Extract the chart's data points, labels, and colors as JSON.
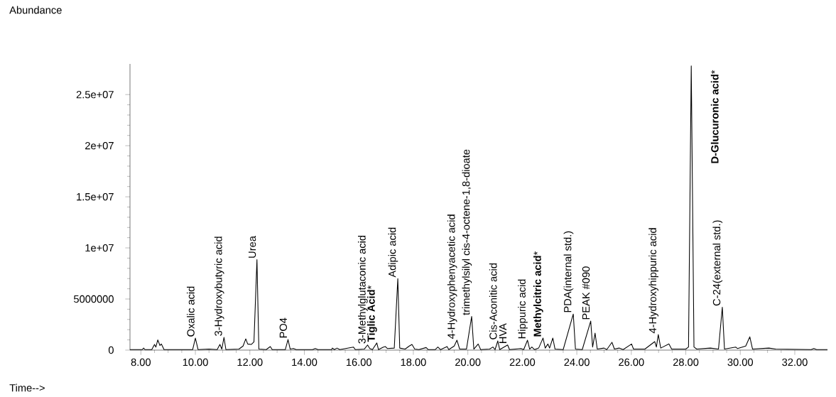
{
  "chart_data": {
    "type": "line",
    "ylabel": "Abundance",
    "xlabel": "Time-->",
    "xlim": [
      7.6,
      33.2
    ],
    "ylim": [
      0,
      28000000
    ],
    "xticks": [
      {
        "value": 8,
        "label": "8.00"
      },
      {
        "value": 10,
        "label": "10.00"
      },
      {
        "value": 12,
        "label": "12.00"
      },
      {
        "value": 14,
        "label": "14.00"
      },
      {
        "value": 16,
        "label": "16.00"
      },
      {
        "value": 18,
        "label": "18.00"
      },
      {
        "value": 20,
        "label": "20.00"
      },
      {
        "value": 22,
        "label": "22.00"
      },
      {
        "value": 24,
        "label": "24.00"
      },
      {
        "value": 26,
        "label": "26.00"
      },
      {
        "value": 28,
        "label": "28.00"
      },
      {
        "value": 30,
        "label": "30.00"
      },
      {
        "value": 32,
        "label": "32.00"
      }
    ],
    "yticks": [
      0,
      5000000,
      {
        "value": 10000000,
        "label": "1e+07"
      },
      {
        "value": 15000000,
        "label": "1.5e+07"
      },
      {
        "value": 20000000,
        "label": "2e+07"
      },
      {
        "value": 25000000,
        "label": "2.5e+07"
      }
    ],
    "series": [
      {
        "color": "#000000",
        "x": [
          7.6,
          8.05,
          8.1,
          8.15,
          8.4,
          8.5,
          8.55,
          8.62,
          8.7,
          8.75,
          8.85,
          9.5,
          9.9,
          10.0,
          10.1,
          10.5,
          10.8,
          10.9,
          10.97,
          11.05,
          11.12,
          11.6,
          11.75,
          11.85,
          11.92,
          12.05,
          12.15,
          12.26,
          12.33,
          12.6,
          12.75,
          12.82,
          13.3,
          13.4,
          13.48,
          13.6,
          13.7,
          14.3,
          14.4,
          14.5,
          15.0,
          15.03,
          15.1,
          15.2,
          15.3,
          15.8,
          15.87,
          16.2,
          16.32,
          16.4,
          16.5,
          16.66,
          16.72,
          16.9,
          16.97,
          17.05,
          17.3,
          17.43,
          17.5,
          17.7,
          17.85,
          17.95,
          18.05,
          18.2,
          18.47,
          18.55,
          18.8,
          18.9,
          19.0,
          19.24,
          19.3,
          19.5,
          19.6,
          19.7,
          19.95,
          20.14,
          20.22,
          20.38,
          20.47,
          20.8,
          20.92,
          21.0,
          21.1,
          21.17,
          21.46,
          21.53,
          21.95,
          22.05,
          22.19,
          22.27,
          22.35,
          22.45,
          22.6,
          22.76,
          22.84,
          22.94,
          23.0,
          23.12,
          23.2,
          23.5,
          23.87,
          23.95,
          24.2,
          24.51,
          24.58,
          24.67,
          24.75,
          25.0,
          25.1,
          25.29,
          25.38,
          25.55,
          25.7,
          26.01,
          26.08,
          26.5,
          26.86,
          26.92,
          26.99,
          27.08,
          27.38,
          27.48,
          28.0,
          28.1,
          28.2,
          28.3,
          28.4,
          28.9,
          29.2,
          29.34,
          29.42,
          29.83,
          29.9,
          30.2,
          30.35,
          30.45,
          31.05,
          31.3,
          32.6,
          32.7,
          32.8,
          33.2
        ],
        "values": [
          50000,
          50000,
          200000,
          50000,
          50000,
          550000,
          300000,
          1000000,
          450000,
          600000,
          50000,
          50000,
          50000,
          1180000,
          50000,
          100000,
          50000,
          550000,
          100000,
          1250000,
          50000,
          100000,
          400000,
          1100000,
          600000,
          550000,
          800000,
          8860000,
          100000,
          50000,
          350000,
          50000,
          50000,
          1040000,
          100000,
          150000,
          50000,
          50000,
          150000,
          50000,
          50000,
          200000,
          50000,
          200000,
          50000,
          300000,
          50000,
          100000,
          500000,
          150000,
          50000,
          700000,
          50000,
          300000,
          350000,
          150000,
          200000,
          7000000,
          200000,
          100000,
          400000,
          550000,
          100000,
          50000,
          250000,
          50000,
          50000,
          300000,
          50000,
          350000,
          50000,
          400000,
          970000,
          100000,
          100000,
          3300000,
          100000,
          600000,
          50000,
          100000,
          300000,
          50000,
          900000,
          50000,
          500000,
          50000,
          150000,
          50000,
          970000,
          100000,
          300000,
          50000,
          200000,
          1180000,
          200000,
          600000,
          200000,
          1180000,
          100000,
          50000,
          3530000,
          100000,
          50000,
          2840000,
          300000,
          1660000,
          100000,
          200000,
          50000,
          760000,
          100000,
          200000,
          50000,
          600000,
          100000,
          100000,
          830000,
          300000,
          1520000,
          200000,
          600000,
          100000,
          100000,
          300000,
          27800000,
          300000,
          100000,
          200000,
          100000,
          4200000,
          100000,
          300000,
          150000,
          400000,
          1300000,
          100000,
          200000,
          100000,
          50000,
          150000,
          50000,
          50000
        ]
      }
    ],
    "annotations": [
      {
        "text": "Oxalic acid",
        "x": 10.0,
        "y": 1180000
      },
      {
        "text": "3-Hydroxybutyric acid",
        "x": 11.05,
        "y": 1250000
      },
      {
        "text": "Urea",
        "x": 12.26,
        "y": 8860000
      },
      {
        "text": "PO4",
        "x": 13.4,
        "y": 1040000
      },
      {
        "text": "3-Methylglutaconic acid",
        "x": 16.32,
        "y": 500000
      },
      {
        "text": "**Tiglic Acid***",
        "x": 16.66,
        "y": 700000
      },
      {
        "text": "Adipic acid",
        "x": 17.43,
        "y": 7000000
      },
      {
        "text": "4-Hydroxyphenyacetic acid",
        "x": 19.6,
        "y": 970000
      },
      {
        "text": "trimethylsilyl cis-4-octene-1,8-dioate",
        "x": 20.14,
        "y": 3300000
      },
      {
        "text": "Cis-Aconitic acid",
        "x": 21.1,
        "y": 900000
      },
      {
        "text": "HVA",
        "x": 21.46,
        "y": 500000
      },
      {
        "text": "Hippuric acid",
        "x": 22.19,
        "y": 970000
      },
      {
        "text": "**Methylcitric acid***",
        "x": 22.76,
        "y": 1180000
      },
      {
        "text": "PDA(internal std.)",
        "x": 23.87,
        "y": 3530000
      },
      {
        "text": "PEAK #090",
        "x": 24.51,
        "y": 2840000
      },
      {
        "text": "4-Hydroxyhippuric acid",
        "x": 26.99,
        "y": 1520000
      },
      {
        "text": "**D-Glucuronic acid***",
        "x": 28.2,
        "y": 27800000
      },
      {
        "text": "C-24(external std.)",
        "x": 29.34,
        "y": 4200000
      }
    ]
  }
}
